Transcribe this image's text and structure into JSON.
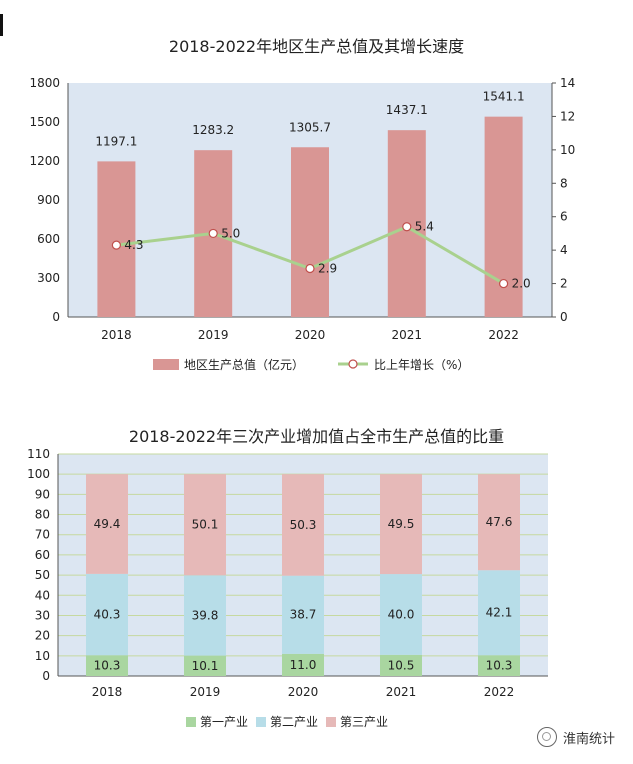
{
  "chart_data": [
    {
      "type": "bar",
      "title": "2018-2022年地区生产总值及其增长速度",
      "categories": [
        "2018",
        "2019",
        "2020",
        "2021",
        "2022"
      ],
      "series": [
        {
          "name": "地区生产总值（亿元）",
          "type": "bar",
          "axis": "left",
          "values": [
            1197.1,
            1283.2,
            1305.7,
            1437.1,
            1541.1
          ],
          "labels": [
            "1197.1",
            "1283.2",
            "1305.7",
            "1437.1",
            "1541.1"
          ],
          "color": "#d99694"
        },
        {
          "name": "比上年增长（%）",
          "type": "line",
          "axis": "right",
          "values": [
            4.3,
            5.0,
            2.9,
            5.4,
            2.0
          ],
          "labels": [
            "4.3",
            "5.0",
            "2.9",
            "5.4",
            "2.0"
          ],
          "color": "#a9d18e"
        }
      ],
      "yticks_left": [
        "0",
        "300",
        "600",
        "900",
        "1200",
        "1500",
        "1800"
      ],
      "yticks_right": [
        "0",
        "2",
        "4",
        "6",
        "8",
        "10",
        "12",
        "14"
      ],
      "ylim_left": [
        0,
        1800
      ],
      "ylim_right": [
        0,
        14
      ],
      "legend": "bottom",
      "background": "#dce6f2"
    },
    {
      "type": "bar",
      "stacked": true,
      "title": "2018-2022年三次产业增加值占全市生产总值的比重",
      "categories": [
        "2018",
        "2019",
        "2020",
        "2021",
        "2022"
      ],
      "series": [
        {
          "name": "第一产业",
          "values": [
            10.3,
            10.1,
            11.0,
            10.5,
            10.3
          ],
          "labels": [
            "10.3",
            "10.1",
            "11.0",
            "10.5",
            "10.3"
          ],
          "color": "#a9d6a0"
        },
        {
          "name": "第二产业",
          "values": [
            40.3,
            39.8,
            38.7,
            40.0,
            42.1
          ],
          "labels": [
            "40.3",
            "39.8",
            "38.7",
            "40.0",
            "42.1"
          ],
          "color": "#b7dde8"
        },
        {
          "name": "第三产业",
          "values": [
            49.4,
            50.1,
            50.3,
            49.5,
            47.6
          ],
          "labels": [
            "49.4",
            "50.1",
            "50.3",
            "49.5",
            "47.6"
          ],
          "color": "#e6b9b8"
        }
      ],
      "yticks": [
        "0",
        "10",
        "20",
        "30",
        "40",
        "50",
        "60",
        "70",
        "80",
        "90",
        "100",
        "110"
      ],
      "ylim": [
        0,
        110
      ],
      "grid": true,
      "legend": "bottom",
      "background": "#dce6f2"
    }
  ],
  "watermark": {
    "text": "淮南统计",
    "icon": "wechat-official-account-icon"
  }
}
